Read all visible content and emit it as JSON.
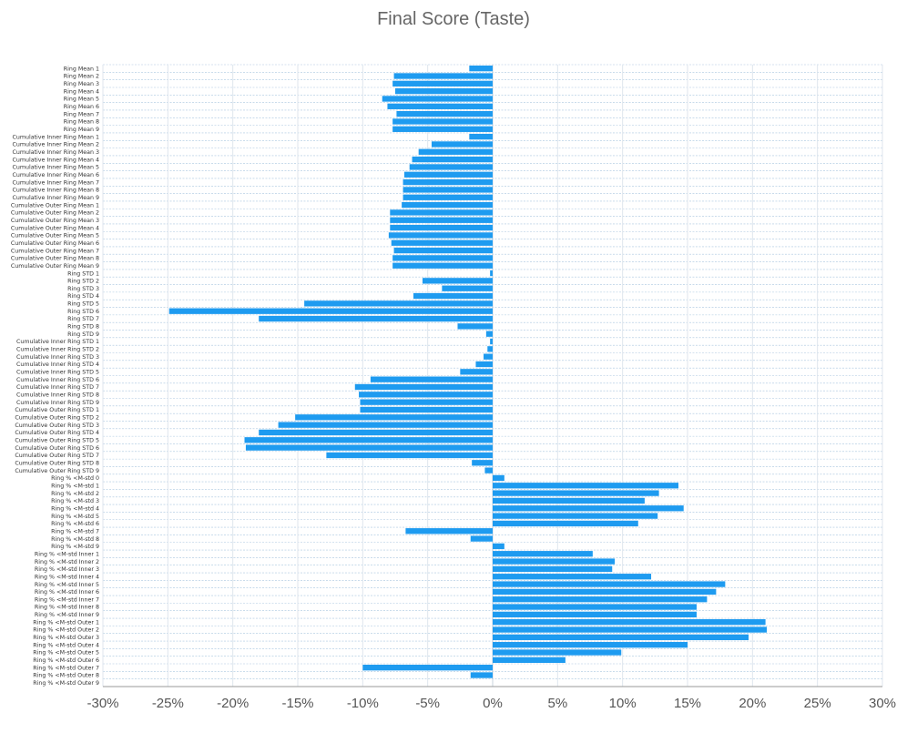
{
  "chart_data": {
    "type": "bar",
    "orientation": "horizontal",
    "title": "Final Score (Taste)",
    "xlabel": "",
    "ylabel": "",
    "xlim": [
      -30,
      30
    ],
    "x_ticks": [
      -30,
      -25,
      -20,
      -15,
      -10,
      -5,
      0,
      5,
      10,
      15,
      20,
      25,
      30
    ],
    "x_tick_labels": [
      "-30%",
      "-25%",
      "-20%",
      "-15%",
      "-10%",
      "-5%",
      "0%",
      "5%",
      "10%",
      "15%",
      "20%",
      "25%",
      "30%"
    ],
    "value_unit": "%",
    "grid": true,
    "bar_color": "#1E9BF0",
    "categories": [
      "Ring Mean 1",
      "Ring Mean 2",
      "Ring Mean 3",
      "Ring Mean 4",
      "Ring Mean 5",
      "Ring Mean 6",
      "Ring Mean 7",
      "Ring Mean 8",
      "Ring Mean 9",
      "Cumulative Inner Ring Mean 1",
      "Cumulative Inner Ring Mean 2",
      "Cumulative Inner Ring Mean 3",
      "Cumulative Inner Ring Mean 4",
      "Cumulative Inner Ring Mean 5",
      "Cumulative Inner Ring Mean 6",
      "Cumulative Inner Ring Mean 7",
      "Cumulative Inner Ring Mean 8",
      "Cumulative Inner Ring Mean 9",
      "Cumulative Outer Ring Mean 1",
      "Cumulative Outer Ring Mean 2",
      "Cumulative Outer Ring Mean 3",
      "Cumulative Outer Ring Mean 4",
      "Cumulative Outer Ring Mean 5",
      "Cumulative Outer Ring Mean 6",
      "Cumulative Outer Ring Mean 7",
      "Cumulative Outer Ring Mean 8",
      "Cumulative Outer Ring Mean 9",
      "Ring STD 1",
      "Ring STD 2",
      "Ring STD 3",
      "Ring STD 4",
      "Ring STD 5",
      "Ring STD 6",
      "Ring STD 7",
      "Ring STD 8",
      "Ring STD 9",
      "Cumulative Inner Ring STD 1",
      "Cumulative Inner Ring STD 2",
      "Cumulative Inner Ring STD 3",
      "Cumulative Inner Ring STD 4",
      "Cumulative Inner Ring STD 5",
      "Cumulative Inner Ring STD 6",
      "Cumulative Inner Ring STD 7",
      "Cumulative Inner Ring STD 8",
      "Cumulative Inner Ring STD 9",
      "Cumulative Outer Ring STD 1",
      "Cumulative Outer Ring STD 2",
      "Cumulative Outer Ring STD 3",
      "Cumulative Outer Ring STD 4",
      "Cumulative Outer Ring STD 5",
      "Cumulative Outer Ring STD 6",
      "Cumulative Outer Ring STD 7",
      "Cumulative Outer Ring STD 8",
      "Cumulative Outer Ring STD 9",
      "Ring % <M-std 0",
      "Ring % <M-std 1",
      "Ring % <M-std 2",
      "Ring % <M-std 3",
      "Ring % <M-std 4",
      "Ring % <M-std 5",
      "Ring % <M-std 6",
      "Ring % <M-std 7",
      "Ring % <M-std 8",
      "Ring % <M-std 9",
      "Ring % <M-std Inner 1",
      "Ring % <M-std Inner 2",
      "Ring % <M-std Inner 3",
      "Ring % <M-std Inner 4",
      "Ring % <M-std Inner 5",
      "Ring % <M-std Inner 6",
      "Ring % <M-std Inner 7",
      "Ring % <M-std Inner 8",
      "Ring % <M-std Inner 9",
      "Ring % <M-std Outer 1",
      "Ring % <M-std Outer 2",
      "Ring % <M-std Outer 3",
      "Ring % <M-std Outer 4",
      "Ring % <M-std Outer 5",
      "Ring % <M-std Outer 6",
      "Ring % <M-std Outer 7",
      "Ring % <M-std Outer 8",
      "Ring % <M-std Outer 9"
    ],
    "values": [
      -1.8,
      -7.6,
      -7.7,
      -7.5,
      -8.5,
      -8.1,
      -7.4,
      -7.7,
      -7.7,
      -1.8,
      -4.7,
      -5.7,
      -6.2,
      -6.4,
      -6.8,
      -6.9,
      -6.9,
      -6.9,
      -7.0,
      -7.9,
      -7.9,
      -7.9,
      -8.0,
      -7.8,
      -7.6,
      -7.7,
      -7.7,
      -0.2,
      -5.4,
      -3.9,
      -6.1,
      -14.5,
      -24.9,
      -18.0,
      -2.7,
      -0.5,
      -0.2,
      -0.4,
      -0.7,
      -1.3,
      -2.5,
      -9.4,
      -10.6,
      -10.3,
      -10.2,
      -10.2,
      -15.2,
      -16.5,
      -18.0,
      -19.1,
      -19.0,
      -12.8,
      -1.6,
      -0.6,
      0.9,
      14.3,
      12.8,
      11.7,
      14.7,
      12.7,
      11.2,
      -6.7,
      -1.7,
      0.9,
      7.7,
      9.4,
      9.2,
      12.2,
      17.9,
      17.2,
      16.5,
      15.7,
      15.7,
      21.0,
      21.1,
      19.7,
      15.0,
      9.9,
      5.6,
      -10.0,
      -1.7,
      0.0
    ]
  }
}
